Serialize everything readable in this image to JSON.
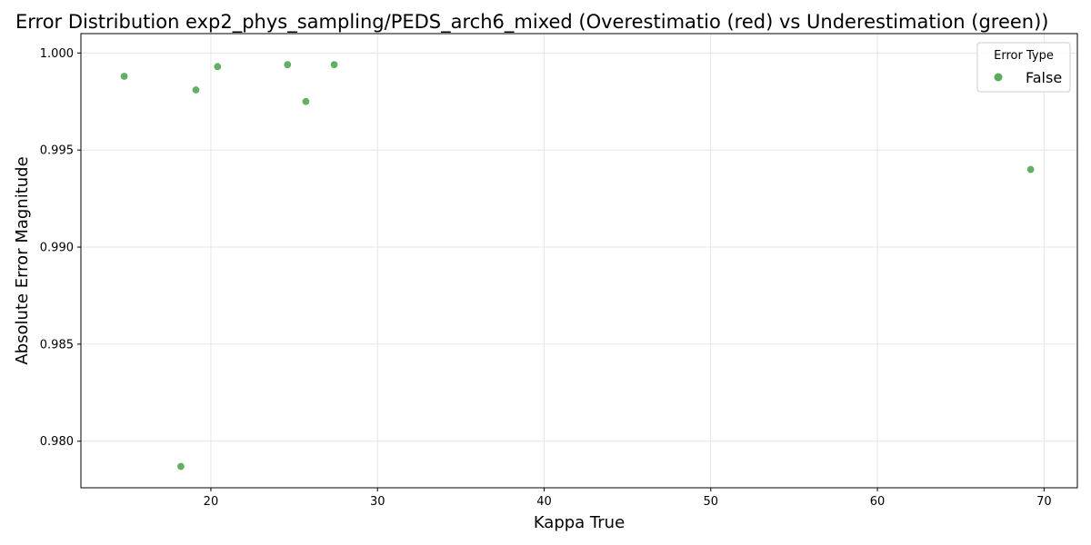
{
  "chart_data": {
    "type": "scatter",
    "title": "Error Distribution exp2_phys_sampling/PEDS_arch6_mixed (Overestimatio (red) vs Underestimation (green))",
    "xlabel": "Kappa True",
    "ylabel": "Absolute Error Magnitude",
    "xlim": [
      12.2,
      72.0
    ],
    "ylim": [
      0.9776,
      1.001
    ],
    "xticks": [
      20,
      30,
      40,
      50,
      60,
      70
    ],
    "yticks": [
      0.98,
      0.985,
      0.99,
      0.995,
      1.0
    ],
    "xtick_labels": [
      "20",
      "30",
      "40",
      "50",
      "60",
      "70"
    ],
    "ytick_labels": [
      "0.980",
      "0.985",
      "0.990",
      "0.995",
      "1.000"
    ],
    "grid": true,
    "legend": {
      "title": "Error Type",
      "placement": "top-right",
      "entries": [
        {
          "label": "False",
          "color": "#5aac5a"
        }
      ]
    },
    "series": [
      {
        "name": "False",
        "color": "#5aac5a",
        "points": [
          {
            "x": 14.8,
            "y": 0.9988
          },
          {
            "x": 19.1,
            "y": 0.9981
          },
          {
            "x": 20.4,
            "y": 0.9993
          },
          {
            "x": 24.6,
            "y": 0.9994
          },
          {
            "x": 25.7,
            "y": 0.9975
          },
          {
            "x": 27.4,
            "y": 0.9994
          },
          {
            "x": 69.2,
            "y": 0.994
          },
          {
            "x": 18.2,
            "y": 0.9787
          }
        ]
      }
    ]
  }
}
